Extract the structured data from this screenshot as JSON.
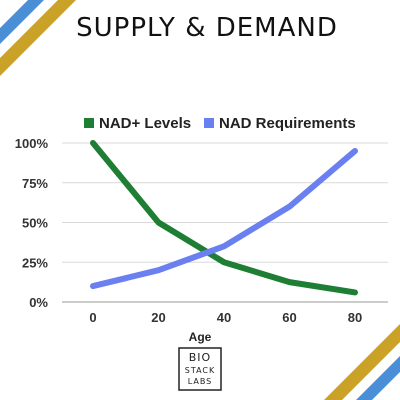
{
  "title": "SUPPLY & DEMAND",
  "colors": {
    "gold": "#c9a227",
    "blue": "#4a8fd6",
    "series_green": "#1e7e34",
    "series_blue": "#6a7ff0",
    "grid": "#d9d9d9"
  },
  "logo": {
    "line1": "BIO",
    "line2": "STACK",
    "line3": "LABS"
  },
  "chart_data": {
    "type": "line",
    "x": [
      0,
      20,
      40,
      60,
      80
    ],
    "xlabel": "Age",
    "ylabel": "",
    "ylim": [
      0,
      100
    ],
    "y_ticks": [
      "0%",
      "25%",
      "50%",
      "75%",
      "100%"
    ],
    "x_ticks": [
      "0",
      "20",
      "40",
      "60",
      "80"
    ],
    "grid": true,
    "legend_position": "top",
    "series": [
      {
        "name": "NAD+ Levels",
        "color": "#1e7e34",
        "values": [
          100,
          50,
          25,
          12.5,
          6
        ]
      },
      {
        "name": "NAD Requirements",
        "color": "#6a7ff0",
        "values": [
          10,
          20,
          35,
          60,
          95
        ]
      }
    ]
  }
}
